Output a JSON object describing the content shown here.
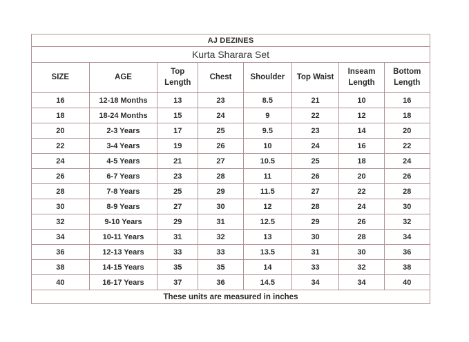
{
  "page": {
    "background": "#ffffff"
  },
  "size_chart": {
    "brand": "AJ DEZINES",
    "product": "Kurta Sharara Set",
    "columns": [
      "SIZE",
      "AGE",
      "Top Length",
      "Chest",
      "Shoulder",
      "Top Waist",
      "Inseam Length",
      "Bottom Length"
    ],
    "rows": [
      [
        "16",
        "12-18 Months",
        "13",
        "23",
        "8.5",
        "21",
        "10",
        "16"
      ],
      [
        "18",
        "18-24 Months",
        "15",
        "24",
        "9",
        "22",
        "12",
        "18"
      ],
      [
        "20",
        "2-3 Years",
        "17",
        "25",
        "9.5",
        "23",
        "14",
        "20"
      ],
      [
        "22",
        "3-4 Years",
        "19",
        "26",
        "10",
        "24",
        "16",
        "22"
      ],
      [
        "24",
        "4-5 Years",
        "21",
        "27",
        "10.5",
        "25",
        "18",
        "24"
      ],
      [
        "26",
        "6-7 Years",
        "23",
        "28",
        "11",
        "26",
        "20",
        "26"
      ],
      [
        "28",
        "7-8 Years",
        "25",
        "29",
        "11.5",
        "27",
        "22",
        "28"
      ],
      [
        "30",
        "8-9 Years",
        "27",
        "30",
        "12",
        "28",
        "24",
        "30"
      ],
      [
        "32",
        "9-10 Years",
        "29",
        "31",
        "12.5",
        "29",
        "26",
        "32"
      ],
      [
        "34",
        "10-11 Years",
        "31",
        "32",
        "13",
        "30",
        "28",
        "34"
      ],
      [
        "36",
        "12-13 Years",
        "33",
        "33",
        "13.5",
        "31",
        "30",
        "36"
      ],
      [
        "38",
        "14-15 Years",
        "35",
        "35",
        "14",
        "33",
        "32",
        "38"
      ],
      [
        "40",
        "16-17 Years",
        "37",
        "36",
        "14.5",
        "34",
        "34",
        "40"
      ]
    ],
    "footer_note": "These units are measured in inches",
    "colors": {
      "border": "#b29092",
      "text": "#2b2b2b",
      "background": "#ffffff"
    }
  },
  "chart_data": {
    "type": "table",
    "title": "AJ DEZINES",
    "subtitle": "Kurta Sharara Set",
    "columns": [
      "SIZE",
      "AGE",
      "Top Length",
      "Chest",
      "Shoulder",
      "Top Waist",
      "Inseam Length",
      "Bottom Length"
    ],
    "rows": [
      [
        16,
        "12-18 Months",
        13,
        23,
        8.5,
        21,
        10,
        16
      ],
      [
        18,
        "18-24 Months",
        15,
        24,
        9,
        22,
        12,
        18
      ],
      [
        20,
        "2-3 Years",
        17,
        25,
        9.5,
        23,
        14,
        20
      ],
      [
        22,
        "3-4 Years",
        19,
        26,
        10,
        24,
        16,
        22
      ],
      [
        24,
        "4-5 Years",
        21,
        27,
        10.5,
        25,
        18,
        24
      ],
      [
        26,
        "6-7 Years",
        23,
        28,
        11,
        26,
        20,
        26
      ],
      [
        28,
        "7-8 Years",
        25,
        29,
        11.5,
        27,
        22,
        28
      ],
      [
        30,
        "8-9 Years",
        27,
        30,
        12,
        28,
        24,
        30
      ],
      [
        32,
        "9-10 Years",
        29,
        31,
        12.5,
        29,
        26,
        32
      ],
      [
        34,
        "10-11 Years",
        31,
        32,
        13,
        30,
        28,
        34
      ],
      [
        36,
        "12-13 Years",
        33,
        33,
        13.5,
        31,
        30,
        36
      ],
      [
        38,
        "14-15 Years",
        35,
        35,
        14,
        33,
        32,
        38
      ],
      [
        40,
        "16-17 Years",
        37,
        36,
        14.5,
        34,
        34,
        40
      ]
    ],
    "note": "These units are measured in inches",
    "units": "inches"
  }
}
